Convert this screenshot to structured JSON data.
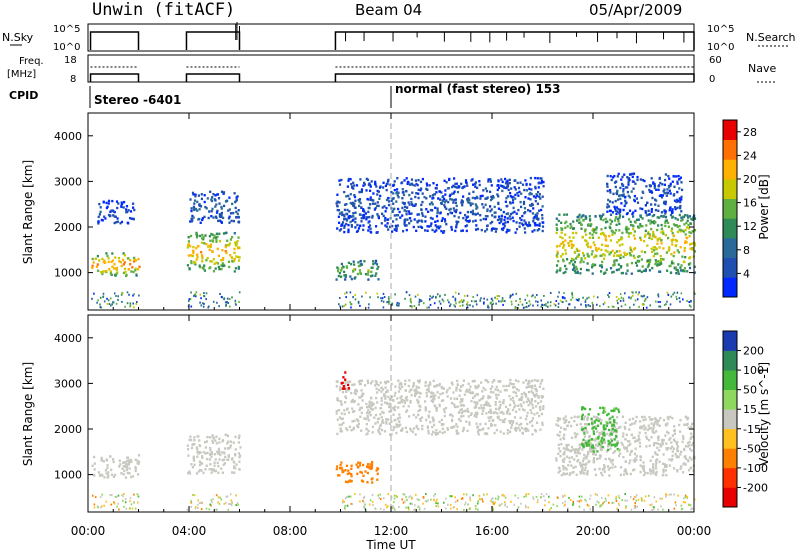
{
  "header": {
    "site_label": "Unwin (fitACF)",
    "beam_label": "Beam 04",
    "date_label": "05/Apr/2009"
  },
  "status_panels": {
    "nsky": {
      "left_label": "N.Sky",
      "right_label": "N.Search",
      "left_ticks": [
        "10^5",
        "10^0"
      ],
      "right_ticks": [
        "10^5",
        "10^0"
      ]
    },
    "freq": {
      "left_label": "Freq.",
      "left_unit": "[MHz]",
      "right_label": "Nave",
      "left_ticks": [
        "18",
        "8"
      ],
      "right_ticks": [
        "60",
        "0"
      ]
    },
    "cpid": {
      "label": "CPID",
      "modes": [
        {
          "text": "Stereo -6401",
          "start_hour": 0.0
        },
        {
          "text": "normal (fast stereo) 153",
          "start_hour": 12.0
        }
      ]
    }
  },
  "chart_data": [
    {
      "type": "heatmap",
      "name": "power-panel",
      "ylabel": "Slant Range [km]",
      "ylim": [
        180,
        4500
      ],
      "yticks": [
        1000,
        2000,
        3000,
        4000
      ],
      "xlim_hours": [
        0,
        24
      ],
      "xticks": [
        "00:00",
        "04:00",
        "08:00",
        "12:00",
        "16:00",
        "20:00",
        "00:00"
      ],
      "colorbar": {
        "label": "Power [dB]",
        "ticks": [
          "4",
          "8",
          "12",
          "16",
          "20",
          "24",
          "28"
        ],
        "range": [
          0,
          30
        ],
        "colors": [
          "#0028ff",
          "#1f4fb0",
          "#2a6a9a",
          "#2e8b57",
          "#5fb040",
          "#c8c800",
          "#ffb000",
          "#ff7000",
          "#e60000"
        ]
      },
      "data_segments_hours": [
        [
          0.1,
          2.0
        ],
        [
          3.9,
          6.0
        ],
        [
          9.8,
          24.0
        ]
      ],
      "echo_regions": [
        {
          "t0": 0.1,
          "t1": 2.0,
          "r0": 950,
          "r1": 1450,
          "power_db": 22
        },
        {
          "t0": 0.3,
          "t1": 1.8,
          "r0": 2100,
          "r1": 2600,
          "power_db": 4
        },
        {
          "t0": 3.9,
          "t1": 6.0,
          "r0": 1050,
          "r1": 1900,
          "power_db": 20
        },
        {
          "t0": 4.0,
          "t1": 6.0,
          "r0": 2100,
          "r1": 2800,
          "power_db": 6
        },
        {
          "t0": 9.8,
          "t1": 18.0,
          "r0": 1900,
          "r1": 3100,
          "power_db": 5
        },
        {
          "t0": 9.8,
          "t1": 11.5,
          "r0": 850,
          "r1": 1300,
          "power_db": 14
        },
        {
          "t0": 18.5,
          "t1": 24.0,
          "r0": 1000,
          "r1": 2300,
          "power_db": 18
        },
        {
          "t0": 20.5,
          "t1": 23.5,
          "r0": 2300,
          "r1": 3200,
          "power_db": 5
        }
      ]
    },
    {
      "type": "heatmap",
      "name": "velocity-panel",
      "ylabel": "Slant Range [km]",
      "xlabel": "Time UT",
      "ylim": [
        180,
        4500
      ],
      "yticks": [
        1000,
        2000,
        3000,
        4000
      ],
      "xlim_hours": [
        0,
        24
      ],
      "xticks": [
        "00:00",
        "04:00",
        "08:00",
        "12:00",
        "16:00",
        "20:00",
        "00:00"
      ],
      "colorbar": {
        "label": "Velocity [m s^-1]",
        "ticks": [
          "200",
          "100",
          "50",
          "15",
          "-15",
          "-50",
          "-100",
          "-200"
        ],
        "colors": [
          "#1a3cb0",
          "#2e8b57",
          "#44b83a",
          "#8fd860",
          "#c8c8c0",
          "#ffc020",
          "#ff8000",
          "#ff3000",
          "#e60000"
        ]
      },
      "echo_regions": [
        {
          "t0": 0.1,
          "t1": 2.0,
          "r0": 950,
          "r1": 1450,
          "velocity": 0
        },
        {
          "t0": 3.9,
          "t1": 6.0,
          "r0": 1050,
          "r1": 1900,
          "velocity": 0
        },
        {
          "t0": 9.8,
          "t1": 18.0,
          "r0": 1900,
          "r1": 3100,
          "velocity": 0
        },
        {
          "t0": 9.8,
          "t1": 11.5,
          "r0": 850,
          "r1": 1300,
          "velocity": -60
        },
        {
          "t0": 10.0,
          "t1": 10.3,
          "r0": 2900,
          "r1": 3300,
          "velocity": -250
        },
        {
          "t0": 18.5,
          "t1": 24.0,
          "r0": 1000,
          "r1": 2300,
          "velocity": 0
        },
        {
          "t0": 19.5,
          "t1": 21.0,
          "r0": 1500,
          "r1": 2500,
          "velocity": 40
        }
      ]
    }
  ]
}
